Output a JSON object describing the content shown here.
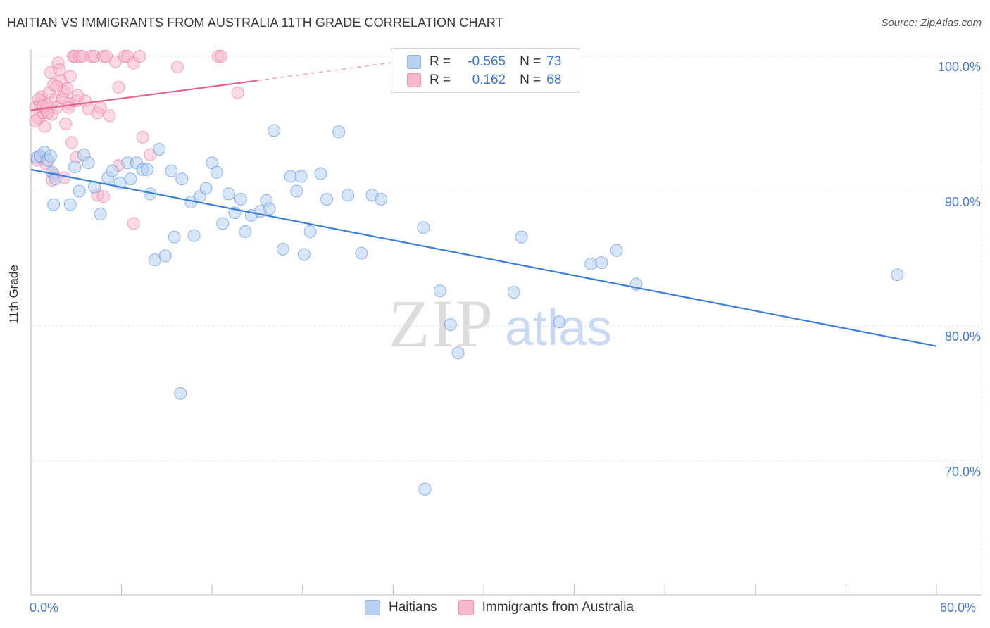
{
  "header": {
    "title": "HAITIAN VS IMMIGRANTS FROM AUSTRALIA 11TH GRADE CORRELATION CHART",
    "source": "Source: ZipAtlas.com"
  },
  "watermark": {
    "zip": "ZIP",
    "atlas": "atlas"
  },
  "legend": {
    "r_label": "R =",
    "n_label": "N =",
    "series": [
      {
        "name": "Haitians",
        "r": "-0.565",
        "n": "73"
      },
      {
        "name": "Immigrants from Australia",
        "r": "0.162",
        "n": "68"
      }
    ]
  },
  "colors": {
    "blue": "#3a7fd8",
    "blue_fill": "#b6cff2",
    "pink": "#e8628f",
    "pink_fill": "#f6b8cd"
  },
  "chart_data": {
    "type": "scatter",
    "title": "HAITIAN VS IMMIGRANTS FROM AUSTRALIA 11TH GRADE CORRELATION CHART",
    "xlabel": "",
    "ylabel": "11th Grade",
    "xlim": [
      0,
      60
    ],
    "ylim": [
      60,
      100.5
    ],
    "x_tick_labels": [
      "0.0%",
      "60.0%"
    ],
    "y_ticks": [
      70,
      80,
      90,
      100
    ],
    "y_tick_labels": [
      "70.0%",
      "80.0%",
      "90.0%",
      "100.0%"
    ],
    "series": [
      {
        "name": "Haitians",
        "color": "#3a7fd8",
        "trend": {
          "x0": 0,
          "y0": 91.6,
          "x1": 60,
          "y1": 78.5,
          "dashed_to": null
        },
        "points": [
          [
            0.4,
            92.5
          ],
          [
            0.6,
            92.6
          ],
          [
            0.9,
            92.9
          ],
          [
            1.1,
            92.3
          ],
          [
            1.4,
            91.4
          ],
          [
            1.6,
            90.9
          ],
          [
            1.5,
            89.0
          ],
          [
            2.6,
            89.0
          ],
          [
            2.9,
            91.8
          ],
          [
            3.2,
            90.0
          ],
          [
            3.5,
            92.7
          ],
          [
            3.8,
            92.1
          ],
          [
            4.2,
            90.3
          ],
          [
            4.6,
            88.3
          ],
          [
            5.1,
            91.0
          ],
          [
            5.4,
            91.5
          ],
          [
            5.9,
            90.6
          ],
          [
            6.4,
            92.1
          ],
          [
            6.6,
            90.9
          ],
          [
            7.0,
            92.1
          ],
          [
            7.4,
            91.6
          ],
          [
            7.7,
            91.6
          ],
          [
            7.9,
            89.8
          ],
          [
            8.2,
            84.9
          ],
          [
            8.5,
            93.1
          ],
          [
            8.9,
            85.2
          ],
          [
            9.3,
            91.5
          ],
          [
            9.5,
            86.6
          ],
          [
            10.0,
            90.9
          ],
          [
            10.6,
            89.2
          ],
          [
            10.8,
            86.7
          ],
          [
            11.2,
            89.6
          ],
          [
            11.6,
            90.2
          ],
          [
            12.0,
            92.1
          ],
          [
            12.3,
            91.4
          ],
          [
            12.7,
            87.6
          ],
          [
            13.1,
            89.8
          ],
          [
            13.5,
            88.4
          ],
          [
            13.9,
            89.4
          ],
          [
            14.2,
            87.0
          ],
          [
            14.6,
            88.2
          ],
          [
            15.2,
            88.5
          ],
          [
            15.6,
            89.3
          ],
          [
            15.8,
            88.7
          ],
          [
            16.7,
            85.7
          ],
          [
            17.2,
            91.1
          ],
          [
            17.6,
            90.0
          ],
          [
            17.9,
            91.1
          ],
          [
            18.1,
            85.3
          ],
          [
            18.5,
            87.0
          ],
          [
            19.2,
            91.3
          ],
          [
            19.6,
            89.4
          ],
          [
            20.4,
            94.4
          ],
          [
            21.0,
            89.7
          ],
          [
            21.9,
            85.4
          ],
          [
            22.6,
            89.7
          ],
          [
            23.2,
            89.4
          ],
          [
            16.1,
            94.5
          ],
          [
            26.0,
            87.3
          ],
          [
            27.1,
            82.6
          ],
          [
            27.8,
            80.1
          ],
          [
            28.3,
            78.0
          ],
          [
            32.0,
            82.5
          ],
          [
            32.5,
            86.6
          ],
          [
            35.0,
            80.3
          ],
          [
            37.1,
            84.6
          ],
          [
            37.8,
            84.7
          ],
          [
            38.8,
            85.6
          ],
          [
            40.1,
            83.1
          ],
          [
            57.4,
            83.8
          ],
          [
            9.9,
            75.0
          ],
          [
            26.1,
            67.9
          ],
          [
            1.3,
            92.6
          ]
        ]
      },
      {
        "name": "Immigrants from Australia",
        "color": "#e8628f",
        "trend": {
          "x0": 0,
          "y0": 96.0,
          "x1": 15.0,
          "y1": 98.2,
          "dashed_to": [
            25,
            99.7
          ]
        },
        "points": [
          [
            0.3,
            96.2
          ],
          [
            0.5,
            95.4
          ],
          [
            0.6,
            96.5
          ],
          [
            0.7,
            97.0
          ],
          [
            0.8,
            95.8
          ],
          [
            0.9,
            94.8
          ],
          [
            1.0,
            96.0
          ],
          [
            1.1,
            96.4
          ],
          [
            1.2,
            97.3
          ],
          [
            1.3,
            98.8
          ],
          [
            1.4,
            95.7
          ],
          [
            1.5,
            97.9
          ],
          [
            1.6,
            96.8
          ],
          [
            1.7,
            96.2
          ],
          [
            1.8,
            99.5
          ],
          [
            1.9,
            99.0
          ],
          [
            2.0,
            98.2
          ],
          [
            2.1,
            96.9
          ],
          [
            2.2,
            97.4
          ],
          [
            2.3,
            95.0
          ],
          [
            2.4,
            97.6
          ],
          [
            2.5,
            96.5
          ],
          [
            2.6,
            98.5
          ],
          [
            2.7,
            93.6
          ],
          [
            2.8,
            100
          ],
          [
            2.9,
            100
          ],
          [
            3.0,
            96.7
          ],
          [
            3.2,
            100
          ],
          [
            3.4,
            100
          ],
          [
            3.6,
            96.7
          ],
          [
            3.8,
            96.1
          ],
          [
            4.0,
            100
          ],
          [
            4.2,
            100
          ],
          [
            4.4,
            95.8
          ],
          [
            4.6,
            96.2
          ],
          [
            4.8,
            100
          ],
          [
            5.0,
            100
          ],
          [
            5.2,
            95.6
          ],
          [
            5.6,
            99.6
          ],
          [
            5.8,
            97.7
          ],
          [
            6.2,
            100
          ],
          [
            6.4,
            100
          ],
          [
            6.8,
            99.5
          ],
          [
            7.2,
            100
          ],
          [
            7.4,
            94.0
          ],
          [
            7.9,
            92.7
          ],
          [
            9.7,
            99.2
          ],
          [
            12.4,
            100
          ],
          [
            12.6,
            100
          ],
          [
            13.7,
            97.3
          ],
          [
            2.2,
            91.0
          ],
          [
            0.4,
            92.3
          ],
          [
            0.6,
            92.6
          ],
          [
            1.0,
            92.0
          ],
          [
            1.5,
            91.2
          ],
          [
            1.4,
            90.8
          ],
          [
            3.0,
            92.5
          ],
          [
            4.4,
            89.7
          ],
          [
            4.8,
            89.6
          ],
          [
            5.8,
            91.9
          ],
          [
            6.8,
            87.6
          ],
          [
            0.3,
            95.2
          ],
          [
            0.5,
            96.8
          ],
          [
            0.8,
            96.3
          ],
          [
            1.1,
            95.8
          ],
          [
            1.7,
            97.8
          ],
          [
            2.5,
            96.2
          ],
          [
            3.1,
            97.1
          ]
        ]
      }
    ]
  }
}
